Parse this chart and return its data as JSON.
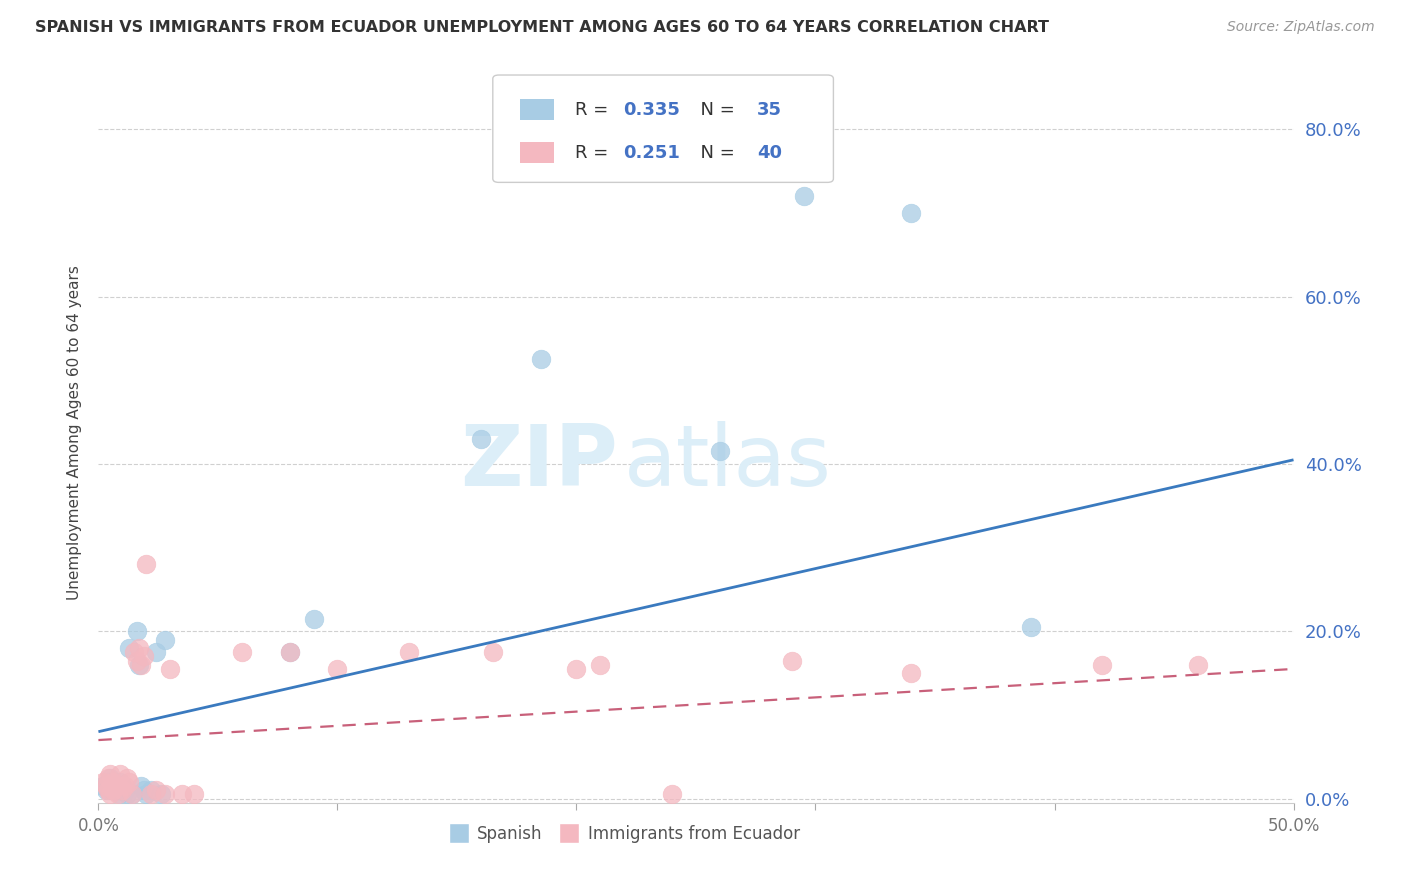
{
  "title": "SPANISH VS IMMIGRANTS FROM ECUADOR UNEMPLOYMENT AMONG AGES 60 TO 64 YEARS CORRELATION CHART",
  "source": "Source: ZipAtlas.com",
  "ylabel": "Unemployment Among Ages 60 to 64 years",
  "xlim": [
    0.0,
    0.5
  ],
  "ylim": [
    -0.005,
    0.88
  ],
  "watermark_zip": "ZIP",
  "watermark_atlas": "atlas",
  "legend_spanish_R": "0.335",
  "legend_spanish_N": "35",
  "legend_ecuador_R": "0.251",
  "legend_ecuador_N": "40",
  "spanish_color": "#a8cce4",
  "ecuador_color": "#f4b8c0",
  "regression_blue_color": "#3a7abf",
  "regression_pink_color": "#c8607a",
  "spanish_x": [
    0.002,
    0.003,
    0.004,
    0.004,
    0.005,
    0.005,
    0.006,
    0.006,
    0.007,
    0.007,
    0.008,
    0.009,
    0.009,
    0.01,
    0.011,
    0.012,
    0.013,
    0.014,
    0.016,
    0.017,
    0.018,
    0.019,
    0.02,
    0.022,
    0.024,
    0.026,
    0.028,
    0.08,
    0.09,
    0.16,
    0.185,
    0.26,
    0.295,
    0.34,
    0.39
  ],
  "spanish_y": [
    0.015,
    0.01,
    0.02,
    0.015,
    0.025,
    0.01,
    0.015,
    0.02,
    0.01,
    0.015,
    0.01,
    0.005,
    0.02,
    0.015,
    0.01,
    0.005,
    0.18,
    0.005,
    0.2,
    0.16,
    0.015,
    0.01,
    0.005,
    0.01,
    0.175,
    0.005,
    0.19,
    0.175,
    0.215,
    0.43,
    0.525,
    0.415,
    0.72,
    0.7,
    0.205
  ],
  "ecuador_x": [
    0.002,
    0.003,
    0.004,
    0.004,
    0.005,
    0.005,
    0.006,
    0.006,
    0.007,
    0.008,
    0.009,
    0.01,
    0.011,
    0.012,
    0.013,
    0.014,
    0.015,
    0.016,
    0.017,
    0.018,
    0.019,
    0.02,
    0.022,
    0.024,
    0.028,
    0.03,
    0.035,
    0.04,
    0.06,
    0.08,
    0.1,
    0.13,
    0.165,
    0.2,
    0.21,
    0.24,
    0.29,
    0.34,
    0.42,
    0.46
  ],
  "ecuador_y": [
    0.02,
    0.015,
    0.01,
    0.025,
    0.03,
    0.005,
    0.02,
    0.01,
    0.015,
    0.005,
    0.03,
    0.01,
    0.015,
    0.025,
    0.02,
    0.005,
    0.175,
    0.165,
    0.18,
    0.16,
    0.17,
    0.28,
    0.005,
    0.01,
    0.005,
    0.155,
    0.005,
    0.005,
    0.175,
    0.175,
    0.155,
    0.175,
    0.175,
    0.155,
    0.16,
    0.005,
    0.165,
    0.15,
    0.16,
    0.16
  ],
  "blue_line_x": [
    0.0,
    0.5
  ],
  "blue_line_y": [
    0.08,
    0.405
  ],
  "pink_line_x": [
    0.0,
    0.5
  ],
  "pink_line_y": [
    0.07,
    0.155
  ],
  "ytick_values": [
    0.0,
    0.2,
    0.4,
    0.6,
    0.8
  ],
  "grid_color": "#d0d0d0",
  "background_color": "#ffffff",
  "right_axis_color": "#4472c4",
  "tick_label_color": "#777777"
}
